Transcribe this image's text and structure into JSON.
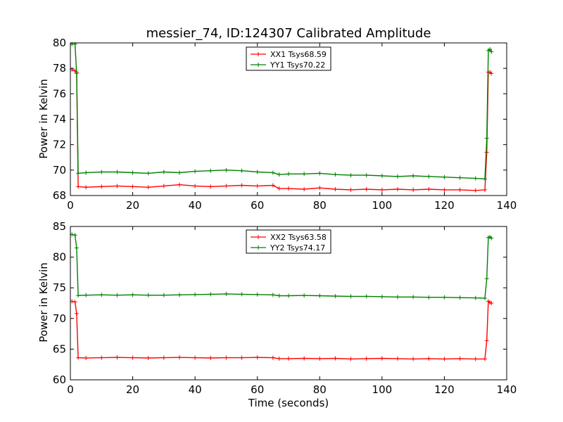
{
  "chart_data": [
    {
      "type": "line",
      "title": "messier_74, ID:124307 Calibrated Amplitude",
      "xlabel": "",
      "ylabel": "Power in Kelvin",
      "xlim": [
        0,
        140
      ],
      "ylim": [
        68,
        80
      ],
      "xticks": [
        0,
        20,
        40,
        60,
        80,
        100,
        120,
        140
      ],
      "yticks": [
        68,
        70,
        72,
        74,
        76,
        78,
        80
      ],
      "grid": false,
      "legend": "top-center",
      "marker": "+",
      "series": [
        {
          "name": "XX1 Tsys68.59",
          "color": "#ff0000",
          "x": [
            0.5,
            1.5,
            2.0,
            2.5,
            5,
            10,
            15,
            20,
            25,
            30,
            35,
            40,
            45,
            50,
            55,
            60,
            65,
            67,
            70,
            75,
            80,
            85,
            90,
            95,
            100,
            105,
            110,
            115,
            120,
            125,
            130,
            133,
            133.6,
            134.1,
            134.6,
            135.1
          ],
          "y": [
            77.9,
            77.8,
            77.7,
            68.7,
            68.65,
            68.7,
            68.75,
            68.7,
            68.65,
            68.75,
            68.85,
            68.75,
            68.7,
            68.75,
            68.8,
            68.75,
            68.8,
            68.55,
            68.55,
            68.5,
            68.6,
            68.5,
            68.45,
            68.5,
            68.45,
            68.5,
            68.45,
            68.5,
            68.45,
            68.45,
            68.4,
            68.45,
            71.4,
            77.7,
            77.7,
            77.6
          ]
        },
        {
          "name": "YY1 Tsys70.22",
          "color": "#008000",
          "x": [
            0.5,
            1.5,
            2.0,
            2.5,
            5,
            10,
            15,
            20,
            25,
            30,
            35,
            40,
            45,
            50,
            55,
            60,
            65,
            67,
            70,
            75,
            80,
            85,
            90,
            95,
            100,
            105,
            110,
            115,
            120,
            125,
            130,
            133,
            133.6,
            134.1,
            134.6,
            135.1
          ],
          "y": [
            79.9,
            79.9,
            77.6,
            69.75,
            69.8,
            69.85,
            69.85,
            69.8,
            69.75,
            69.85,
            69.8,
            69.9,
            69.95,
            70.0,
            69.95,
            69.85,
            69.8,
            69.65,
            69.7,
            69.7,
            69.75,
            69.65,
            69.6,
            69.6,
            69.55,
            69.5,
            69.55,
            69.5,
            69.45,
            69.4,
            69.35,
            69.3,
            72.5,
            79.4,
            79.5,
            79.3
          ]
        }
      ]
    },
    {
      "type": "line",
      "title": "",
      "xlabel": "Time (seconds)",
      "ylabel": "Power in Kelvin",
      "xlim": [
        0,
        140
      ],
      "ylim": [
        60,
        85
      ],
      "xticks": [
        0,
        20,
        40,
        60,
        80,
        100,
        120,
        140
      ],
      "yticks": [
        60,
        65,
        70,
        75,
        80,
        85
      ],
      "grid": false,
      "legend": "top-center",
      "marker": "+",
      "series": [
        {
          "name": "XX2 Tsys63.58",
          "color": "#ff0000",
          "x": [
            0.5,
            1.5,
            2.0,
            2.5,
            5,
            10,
            15,
            20,
            25,
            30,
            35,
            40,
            45,
            50,
            55,
            60,
            65,
            67,
            70,
            75,
            80,
            85,
            90,
            95,
            100,
            105,
            110,
            115,
            120,
            125,
            130,
            133,
            133.6,
            134.1,
            134.6,
            135.1
          ],
          "y": [
            72.8,
            72.7,
            70.8,
            63.6,
            63.55,
            63.6,
            63.65,
            63.6,
            63.55,
            63.6,
            63.65,
            63.6,
            63.55,
            63.6,
            63.6,
            63.65,
            63.6,
            63.45,
            63.45,
            63.5,
            63.45,
            63.5,
            63.4,
            63.45,
            63.5,
            63.45,
            63.4,
            63.45,
            63.4,
            63.45,
            63.4,
            63.4,
            66.4,
            72.8,
            72.6,
            72.5
          ]
        },
        {
          "name": "YY2 Tsys74.17",
          "color": "#008000",
          "x": [
            0.5,
            1.5,
            2.0,
            2.5,
            5,
            10,
            15,
            20,
            25,
            30,
            35,
            40,
            45,
            50,
            55,
            60,
            65,
            67,
            70,
            75,
            80,
            85,
            90,
            95,
            100,
            105,
            110,
            115,
            120,
            125,
            130,
            133,
            133.6,
            134.1,
            134.6,
            135.1
          ],
          "y": [
            83.7,
            83.6,
            81.5,
            73.75,
            73.8,
            73.85,
            73.8,
            73.85,
            73.8,
            73.8,
            73.85,
            73.9,
            73.95,
            74.0,
            73.95,
            73.9,
            73.85,
            73.7,
            73.7,
            73.75,
            73.7,
            73.65,
            73.6,
            73.6,
            73.55,
            73.5,
            73.5,
            73.45,
            73.45,
            73.4,
            73.35,
            73.3,
            76.5,
            83.2,
            83.3,
            83.1
          ]
        }
      ]
    }
  ]
}
